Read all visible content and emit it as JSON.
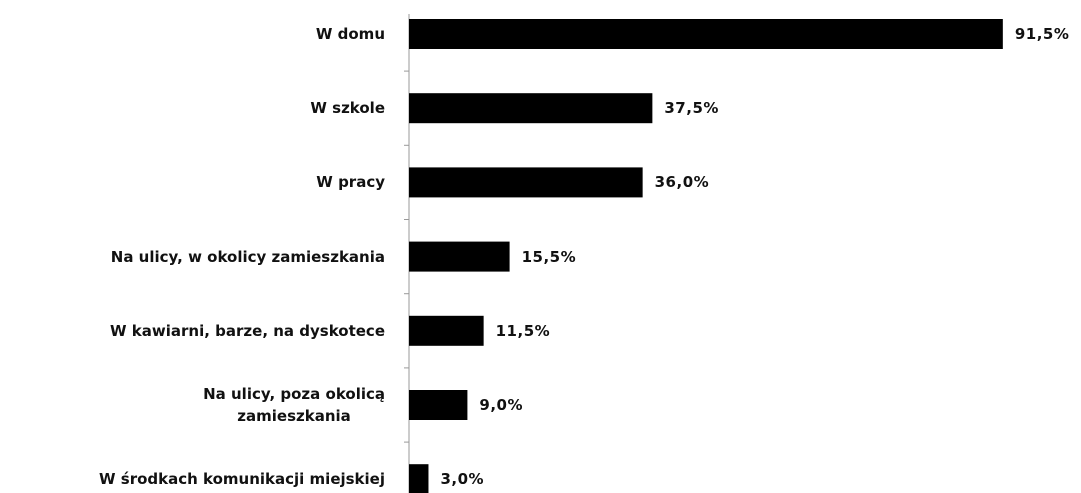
{
  "chart_data": {
    "type": "bar",
    "orientation": "horizontal",
    "categories": [
      "W domu",
      "W szkole",
      "W pracy",
      "Na ulicy, w okolicy zamieszkania",
      "W kawiarni, barze, na dyskotece",
      "Na ulicy, poza okolicą\nzamieszkania",
      "W środkach komunikacji miejskiej"
    ],
    "values": [
      91.5,
      37.5,
      36.0,
      15.5,
      11.5,
      9.0,
      3.0
    ],
    "value_labels": [
      "91,5%",
      "37,5%",
      "36,0%",
      "15,5%",
      "11,5%",
      "9,0%",
      "3,0%"
    ],
    "color": "#000000"
  }
}
